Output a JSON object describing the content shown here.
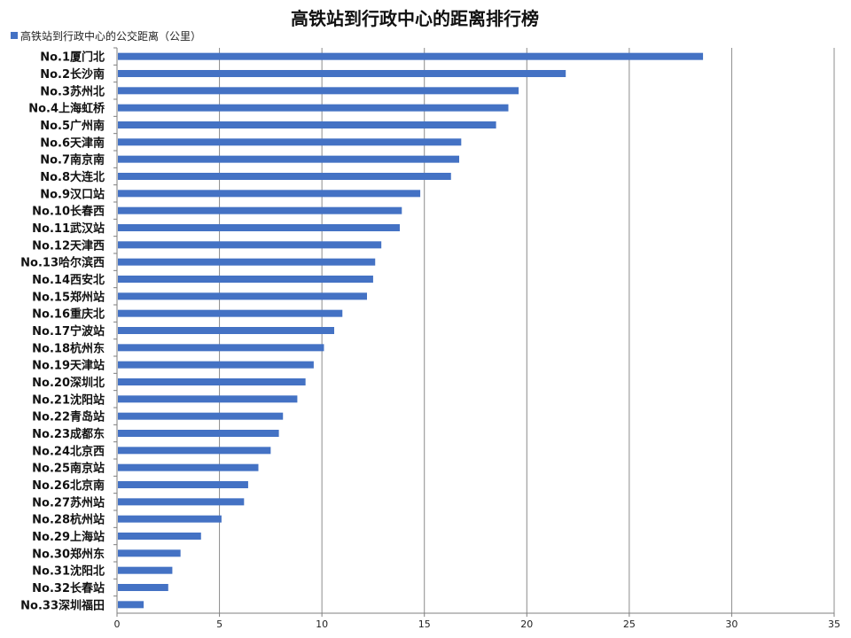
{
  "chart_data": {
    "type": "bar",
    "orientation": "horizontal",
    "title": "高铁站到行政中心的距离排行榜",
    "legend": {
      "position": "top-left",
      "label": "高铁站到行政中心的公交距离（公里）"
    },
    "xlabel": "",
    "ylabel": "",
    "xlim": [
      0,
      35
    ],
    "xticks": [
      0,
      5,
      10,
      15,
      20,
      25,
      30,
      35
    ],
    "grid": "vertical",
    "bar_color": "#4472C4",
    "categories": [
      "No.1厦门北",
      "No.2长沙南",
      "No.3苏州北",
      "No.4上海虹桥",
      "No.5广州南",
      "No.6天津南",
      "No.7南京南",
      "No.8大连北",
      "No.9汉口站",
      "No.10长春西",
      "No.11武汉站",
      "No.12天津西",
      "No.13哈尔滨西",
      "No.14西安北",
      "No.15郑州站",
      "No.16重庆北",
      "No.17宁波站",
      "No.18杭州东",
      "No.19天津站",
      "No.20深圳北",
      "No.21沈阳站",
      "No.22青岛站",
      "No.23成都东",
      "No.24北京西",
      "No.25南京站",
      "No.26北京南",
      "No.27苏州站",
      "No.28杭州站",
      "No.29上海站",
      "No.30郑州东",
      "No.31沈阳北",
      "No.32长春站",
      "No.33深圳福田"
    ],
    "series": [
      {
        "name": "高铁站到行政中心的公交距离（公里）",
        "values": [
          28.6,
          21.9,
          19.6,
          19.1,
          18.5,
          16.8,
          16.7,
          16.3,
          14.8,
          13.9,
          13.8,
          12.9,
          12.6,
          12.5,
          12.2,
          11.0,
          10.6,
          10.1,
          9.6,
          9.2,
          8.8,
          8.1,
          7.9,
          7.5,
          6.9,
          6.4,
          6.2,
          5.1,
          4.1,
          3.1,
          2.7,
          2.5,
          1.3
        ]
      }
    ]
  }
}
